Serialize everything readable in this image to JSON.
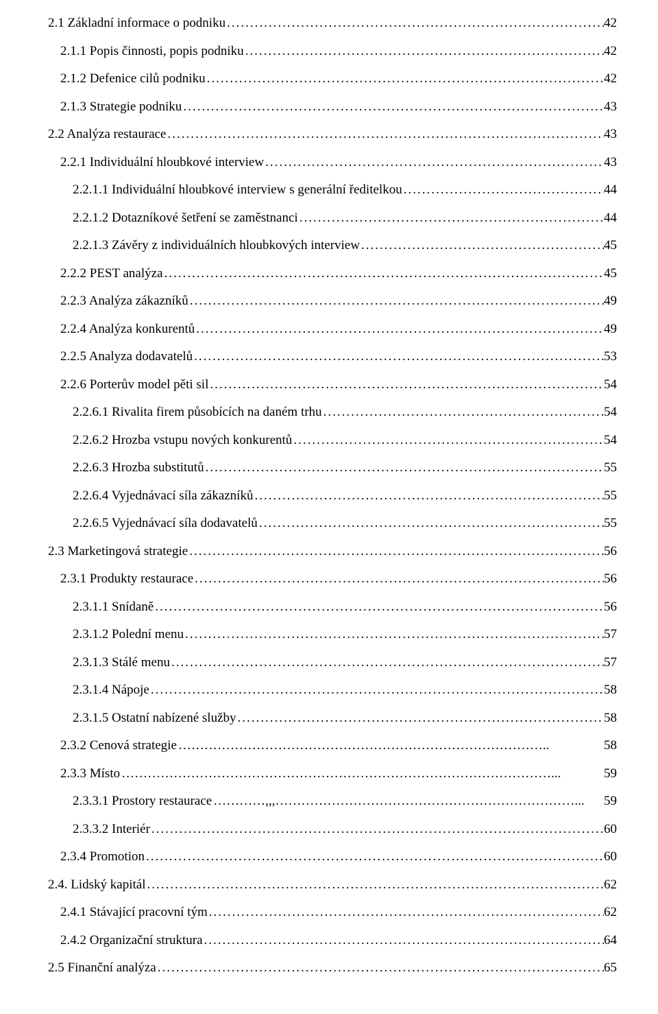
{
  "page": {
    "background_color": "#ffffff",
    "text_color": "#000000",
    "font_family": "Times New Roman",
    "font_size_pt": 14
  },
  "toc": [
    {
      "indent": 0,
      "label": "2.1 Základní informace o podniku",
      "page": "42",
      "leader": "dots"
    },
    {
      "indent": 1,
      "label": "2.1.1 Popis činnosti, popis podniku",
      "page": "42",
      "leader": "dots"
    },
    {
      "indent": 1,
      "label": "2.1.2 Defenice cilů podniku",
      "page": "42",
      "leader": "dots"
    },
    {
      "indent": 1,
      "label": "2.1.3 Strategie podniku",
      "page": "43",
      "leader": "dots"
    },
    {
      "indent": 0,
      "label": "2.2 Analýza restaurace",
      "page": "43",
      "leader": "dots"
    },
    {
      "indent": 1,
      "label": "2.2.1 Individuální hloubkové interview",
      "page": "43",
      "leader": "dots"
    },
    {
      "indent": 2,
      "label": "2.2.1.1 Individuální hloubkové interview s generální ředitelkou",
      "page": "44",
      "leader": "dots"
    },
    {
      "indent": 2,
      "label": "2.2.1.2 Dotazníkové šetření se zaměstnanci",
      "page": "44",
      "leader": "dots"
    },
    {
      "indent": 2,
      "label": "2.2.1.3 Závěry z individuálních hloubkových interview",
      "page": "45",
      "leader": "dots"
    },
    {
      "indent": 1,
      "label": "2.2.2 PEST analýza",
      "page": "45",
      "leader": "dots"
    },
    {
      "indent": 1,
      "label": "2.2.3 Analýza zákazníků",
      "page": "49",
      "leader": "dots"
    },
    {
      "indent": 1,
      "label": "2.2.4 Analýza konkurentů",
      "page": "49",
      "leader": "dots"
    },
    {
      "indent": 1,
      "label": "2.2.5 Analyza dodavatelů",
      "page": "53",
      "leader": "dots"
    },
    {
      "indent": 1,
      "label": "2.2.6 Porterův model pěti sil",
      "page": "54",
      "leader": "dots"
    },
    {
      "indent": 2,
      "label": "2.2.6.1 Rivalita firem působících na daném trhu",
      "page": "54",
      "leader": "dots"
    },
    {
      "indent": 2,
      "label": "2.2.6.2 Hrozba vstupu nových konkurentů",
      "page": "54",
      "leader": "dots"
    },
    {
      "indent": 2,
      "label": "2.2.6.3 Hrozba substitutů",
      "page": "55",
      "leader": "dots"
    },
    {
      "indent": 2,
      "label": "2.2.6.4 Vyjednávací síla zákazníků",
      "page": "55",
      "leader": "dots"
    },
    {
      "indent": 2,
      "label": "2.2.6.5 Vyjednávací síla dodavatelů",
      "page": "55",
      "leader": "dots"
    },
    {
      "indent": 0,
      "label": "2.3 Marketingová strategie",
      "page": "56",
      "leader": "dots"
    },
    {
      "indent": 1,
      "label": "2.3.1 Produkty restaurace",
      "page": "56",
      "leader": "dots"
    },
    {
      "indent": 2,
      "label": "2.3.1.1 Snídaně",
      "page": "56",
      "leader": "dots"
    },
    {
      "indent": 2,
      "label": "2.3.1.2 Polední menu",
      "page": "57",
      "leader": "dots"
    },
    {
      "indent": 2,
      "label": "2.3.1.3 Stálé menu",
      "page": "57",
      "leader": "dots"
    },
    {
      "indent": 2,
      "label": "2.3.1.4 Nápoje",
      "page": "58",
      "leader": "dots"
    },
    {
      "indent": 2,
      "label": "2.3.1.5 Ostatní nabízené služby",
      "page": "58",
      "leader": "dots"
    },
    {
      "indent": 1,
      "label": "2.3.2 Cenová strategie",
      "page": "58",
      "leader": "ellipsis"
    },
    {
      "indent": 1,
      "label": "2.3.3 Místo",
      "page": "59",
      "leader": "ellipsis-long"
    },
    {
      "indent": 2,
      "label": "2.3.3.1 Prostory restaurace",
      "page": "59",
      "leader": "comma"
    },
    {
      "indent": 2,
      "label": "2.3.3.2 Interiér",
      "page": "60",
      "leader": "dots"
    },
    {
      "indent": 1,
      "label": "2.3.4 Promotion",
      "page": "60",
      "leader": "dots"
    },
    {
      "indent": 0,
      "label": "2.4. Lidský kapitál",
      "page": "62",
      "leader": "dots"
    },
    {
      "indent": 1,
      "label": "2.4.1 Stávající pracovní tým",
      "page": "62",
      "leader": "dots"
    },
    {
      "indent": 1,
      "label": "2.4.2 Organizační struktura",
      "page": "64",
      "leader": "dots"
    },
    {
      "indent": 0,
      "label": "2.5 Finanční analýza",
      "page": "65",
      "leader": "dots"
    }
  ]
}
